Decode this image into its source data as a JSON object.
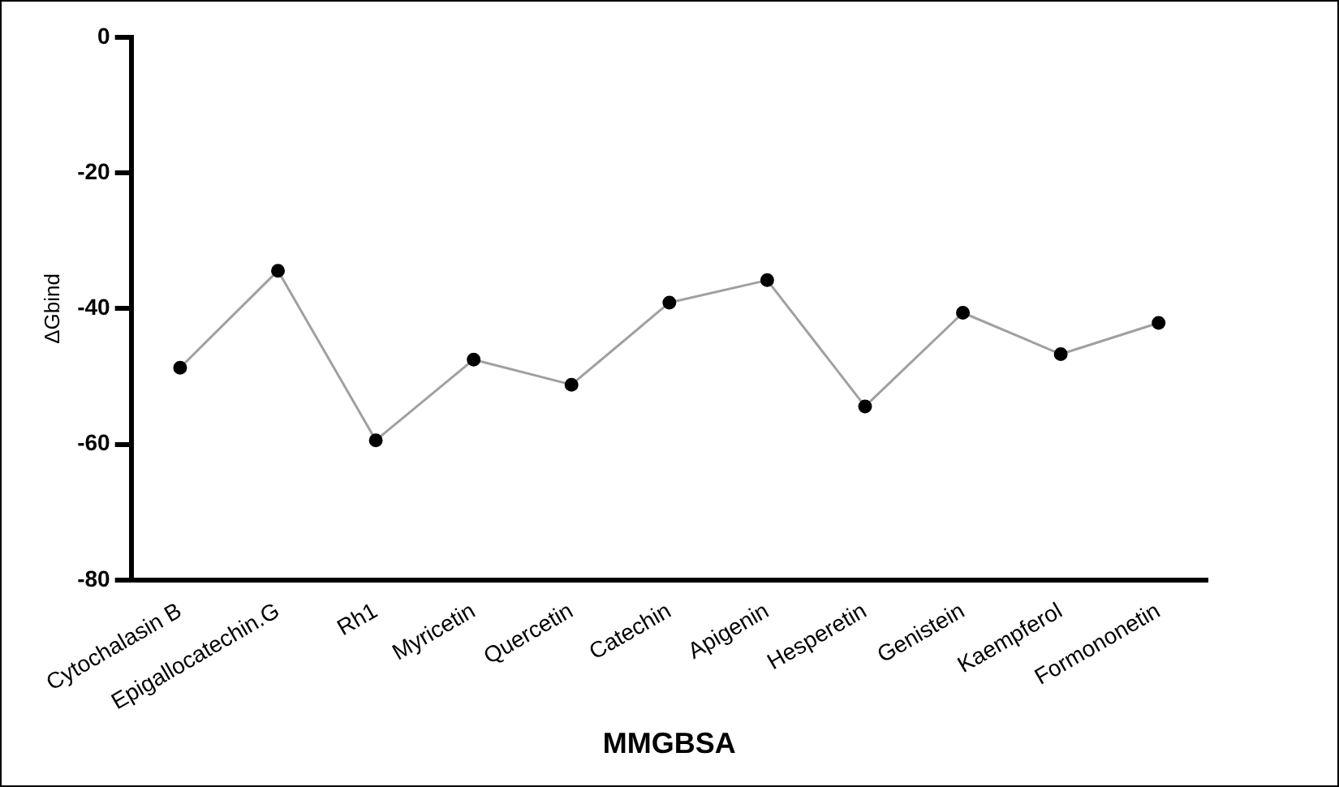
{
  "chart_data": {
    "type": "line",
    "xlabel": "MMGBSA",
    "ylabel": "ΔGbind",
    "categories": [
      "Cytochalasin B",
      "Epigallocatechin.G",
      "Rh1",
      "Myricetin",
      "Quercetin",
      "Catechin",
      "Apigenin",
      "Hesperetin",
      "Genistein",
      "Kaempferol",
      "Formononetin"
    ],
    "series": [
      {
        "color": "#a0a0a0",
        "values": [
          -48.7,
          -34.4,
          -59.4,
          -47.5,
          -51.2,
          -39.1,
          -35.8,
          -54.4,
          -40.6,
          -46.7,
          -42.1
        ]
      }
    ],
    "ylim": [
      -80,
      0
    ],
    "yticks": [
      0,
      -20,
      -40,
      -60,
      -80
    ],
    "grid": false,
    "legend": false,
    "marker": "circle",
    "line_style": "solid"
  }
}
